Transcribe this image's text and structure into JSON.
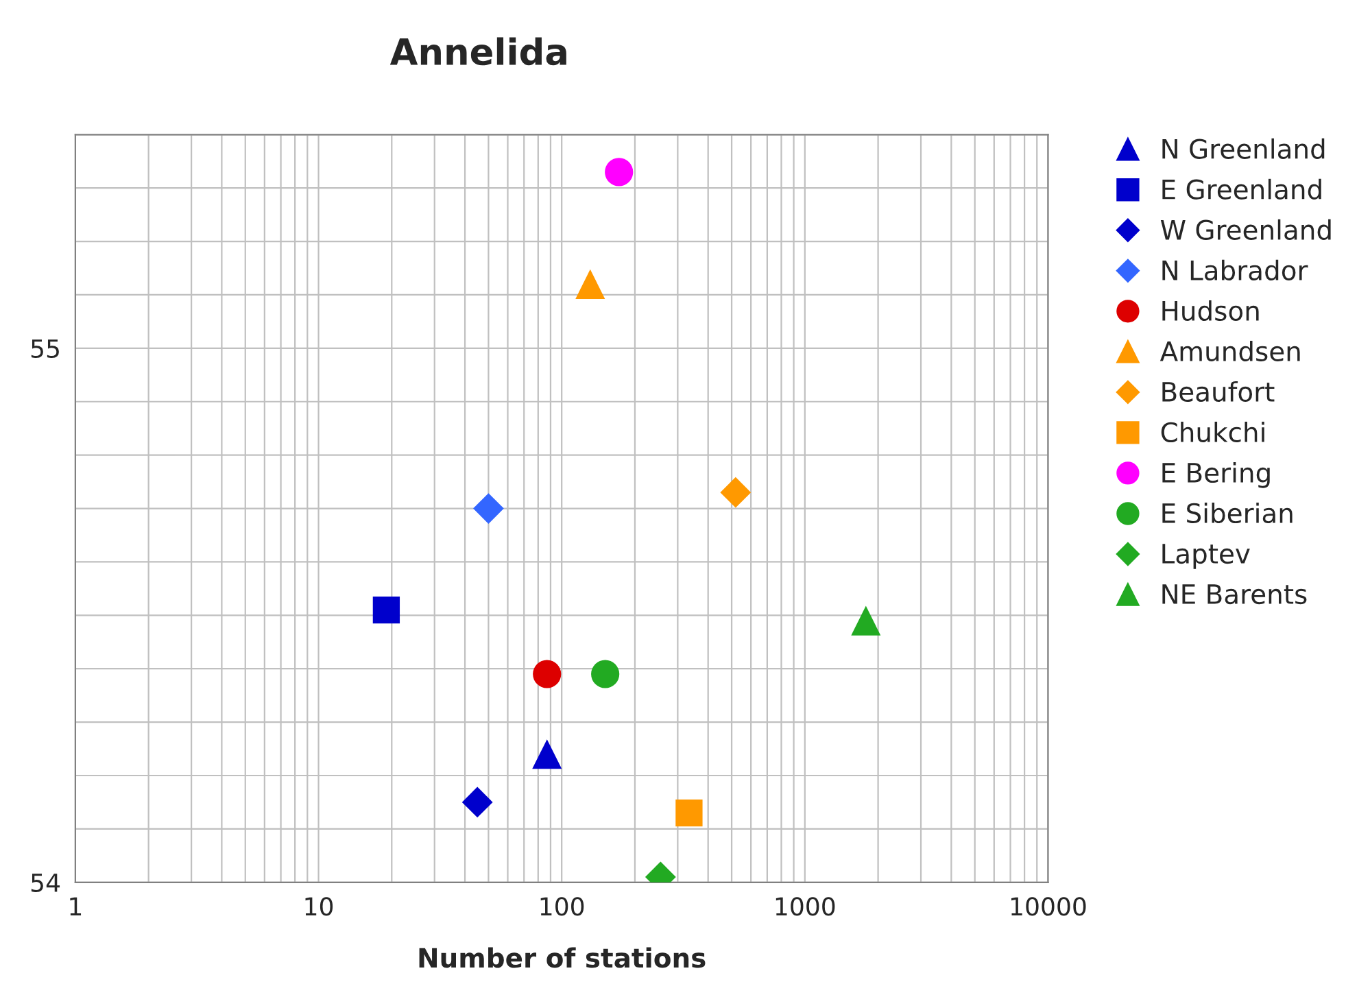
{
  "chart_data": {
    "type": "scatter",
    "title": "Annelida",
    "xlabel": "Number of stations",
    "log": "x",
    "grid": true,
    "legend": "right",
    "xlim": [
      1,
      10000
    ],
    "xticks": [
      1,
      10,
      100,
      1000,
      10000
    ],
    "ylim": [
      54,
      55.4
    ],
    "yticks": [
      54,
      {
        "value": 54.1,
        "label": null
      },
      {
        "value": 54.2,
        "label": null
      },
      {
        "value": 54.3,
        "label": null
      },
      {
        "value": 54.4,
        "label": null
      },
      {
        "value": 54.5,
        "label": null
      },
      {
        "value": 54.6,
        "label": null
      },
      {
        "value": 54.7,
        "label": null
      },
      {
        "value": 54.8,
        "label": null
      },
      {
        "value": 54.9,
        "label": null
      },
      55,
      {
        "value": 55.1,
        "label": null
      },
      {
        "value": 55.2,
        "label": null
      },
      {
        "value": 55.3,
        "label": null
      },
      {
        "value": 55.4,
        "label": null
      }
    ],
    "series": [
      {
        "name": "N Greenland",
        "color": "#0000cc",
        "marker": "triangle",
        "x": [
          87
        ],
        "values": [
          54.24
        ]
      },
      {
        "name": "E Greenland",
        "color": "#0000cc",
        "marker": "square",
        "x": [
          19
        ],
        "values": [
          54.51
        ]
      },
      {
        "name": "W Greenland",
        "color": "#0000cc",
        "marker": "diamond",
        "x": [
          45
        ],
        "values": [
          54.15
        ]
      },
      {
        "name": "N Labrador",
        "color": "#3366ff",
        "marker": "diamond",
        "x": [
          50
        ],
        "values": [
          54.7
        ]
      },
      {
        "name": "Hudson",
        "color": "#dd0000",
        "marker": "circle",
        "x": [
          87
        ],
        "values": [
          54.39
        ]
      },
      {
        "name": "Amundsen",
        "color": "#ff9900",
        "marker": "triangle",
        "x": [
          131
        ],
        "values": [
          55.12
        ]
      },
      {
        "name": "Beaufort",
        "color": "#ff9900",
        "marker": "diamond",
        "x": [
          519
        ],
        "values": [
          54.73
        ]
      },
      {
        "name": "Chukchi",
        "color": "#ff9900",
        "marker": "square",
        "x": [
          334
        ],
        "values": [
          54.13
        ]
      },
      {
        "name": "E Bering",
        "color": "#ff00ff",
        "marker": "circle",
        "x": [
          172
        ],
        "values": [
          55.33
        ]
      },
      {
        "name": "E Siberian",
        "color": "#22aa22",
        "marker": "circle",
        "x": [
          151
        ],
        "values": [
          54.39
        ]
      },
      {
        "name": "Laptev",
        "color": "#22aa22",
        "marker": "diamond",
        "x": [
          255
        ],
        "values": [
          54.01
        ]
      },
      {
        "name": "NE Barents",
        "color": "#22aa22",
        "marker": "triangle",
        "x": [
          1782
        ],
        "values": [
          54.49
        ]
      }
    ]
  }
}
